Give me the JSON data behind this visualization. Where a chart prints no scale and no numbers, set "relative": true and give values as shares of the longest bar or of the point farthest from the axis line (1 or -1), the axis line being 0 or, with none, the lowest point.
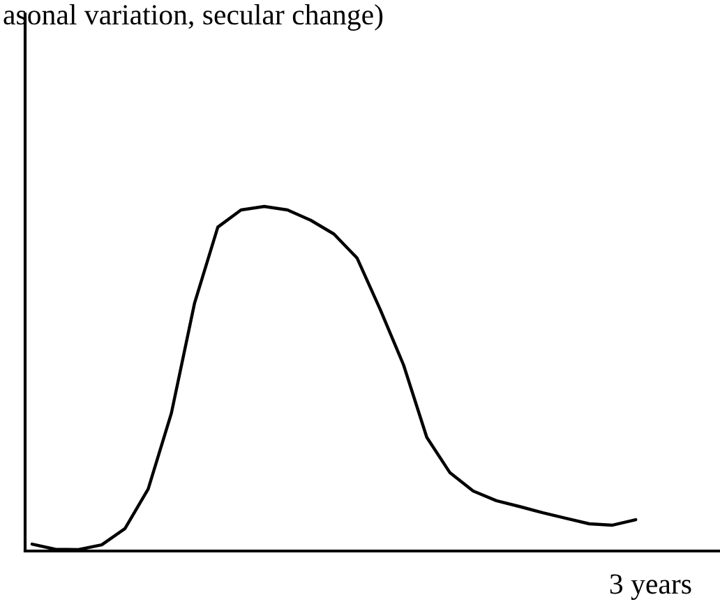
{
  "chart_data": {
    "type": "line",
    "title": "asonal variation, secular change)",
    "xlabel": "3 years",
    "relative": true,
    "categories": [
      null,
      null,
      null,
      null,
      null,
      null,
      null,
      null,
      null,
      null,
      null,
      null,
      null,
      null,
      null,
      null,
      null,
      null,
      null,
      null,
      null,
      null,
      null,
      null,
      null,
      null,
      null
    ],
    "series": [
      {
        "color": "#000000",
        "values": [
          0.02,
          0.005,
          0.004,
          0.018,
          0.065,
          0.18,
          0.4,
          0.72,
          0.94,
          0.99,
          1.0,
          0.99,
          0.96,
          0.92,
          0.85,
          0.7,
          0.54,
          0.33,
          0.227,
          0.174,
          0.146,
          0.129,
          0.111,
          0.095,
          0.079,
          0.075,
          0.091
        ]
      }
    ]
  }
}
